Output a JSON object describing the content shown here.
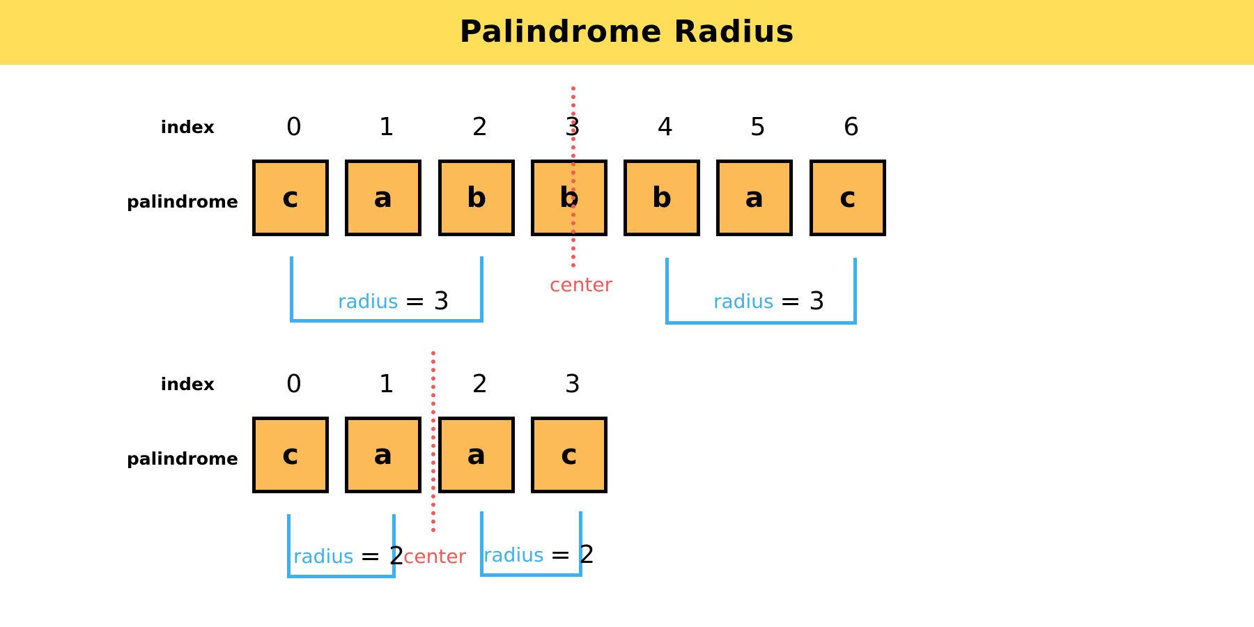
{
  "header": {
    "title": "Palindrome Radius"
  },
  "labels": {
    "index": "index",
    "palindrome": "palindrome",
    "center": "center",
    "radius_word": "radius"
  },
  "examples": [
    {
      "indices": [
        "0",
        "1",
        "2",
        "3",
        "4",
        "5",
        "6"
      ],
      "chars": [
        "c",
        "a",
        "b",
        "b",
        "b",
        "a",
        "c"
      ],
      "left_radius": "= 3",
      "right_radius": "= 3"
    },
    {
      "indices": [
        "0",
        "1",
        "2",
        "3"
      ],
      "chars": [
        "c",
        "a",
        "a",
        "c"
      ],
      "left_radius": "= 2",
      "right_radius": "= 2"
    }
  ],
  "colors": {
    "header": "#ffde5a",
    "cell": "#fdbb57",
    "bracket": "#3db0f0",
    "center": "#f05a5a"
  }
}
